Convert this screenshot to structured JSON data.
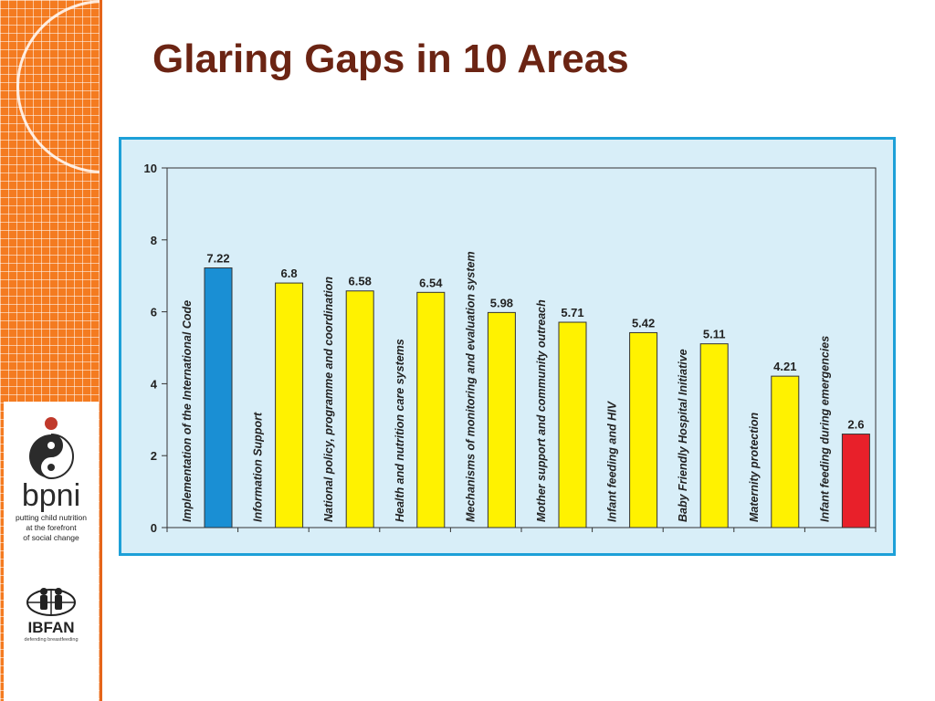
{
  "page": {
    "title": "Glaring Gaps in 10 Areas"
  },
  "logos": {
    "bpni": {
      "name": "bpni",
      "tagline": [
        "putting child nutrition",
        "at the forefront",
        "of social change"
      ]
    },
    "ibfan": {
      "name": "IBFAN",
      "tagline": "defending breastfeeding"
    }
  },
  "colors": {
    "sidebar": "#f47b20",
    "title": "#6b2413",
    "chart_border": "#1da0d8",
    "chart_background": "#d8eef8",
    "bar_blue": "#1a8fd4",
    "bar_yellow": "#fff200",
    "bar_red": "#e8202a"
  },
  "chart_data": {
    "type": "bar",
    "title": "",
    "xlabel": "",
    "ylabel": "",
    "ylim": [
      0,
      10
    ],
    "yticks": [
      0,
      2,
      4,
      6,
      8,
      10
    ],
    "grid": false,
    "categories": [
      "Implementation of the International Code",
      "Information Support",
      "National policy, programme and coordination",
      "Health and nutrition care systems",
      "Mechanisms of monitoring and evaluation system",
      "Mother support and community outreach",
      "Infant feeding and HIV",
      "Baby Friendly Hospital Initiative",
      "Maternity protection",
      "Infant feeding during emergencies"
    ],
    "values": [
      7.22,
      6.8,
      6.58,
      6.54,
      5.98,
      5.71,
      5.42,
      5.11,
      4.21,
      2.6
    ],
    "value_labels": [
      "7.22",
      "6.8",
      "6.58",
      "6.54",
      "5.98",
      "5.71",
      "5.42",
      "5.11",
      "4.21",
      "2.6"
    ],
    "bar_colors": [
      "#1a8fd4",
      "#fff200",
      "#fff200",
      "#fff200",
      "#fff200",
      "#fff200",
      "#fff200",
      "#fff200",
      "#fff200",
      "#e8202a"
    ]
  }
}
